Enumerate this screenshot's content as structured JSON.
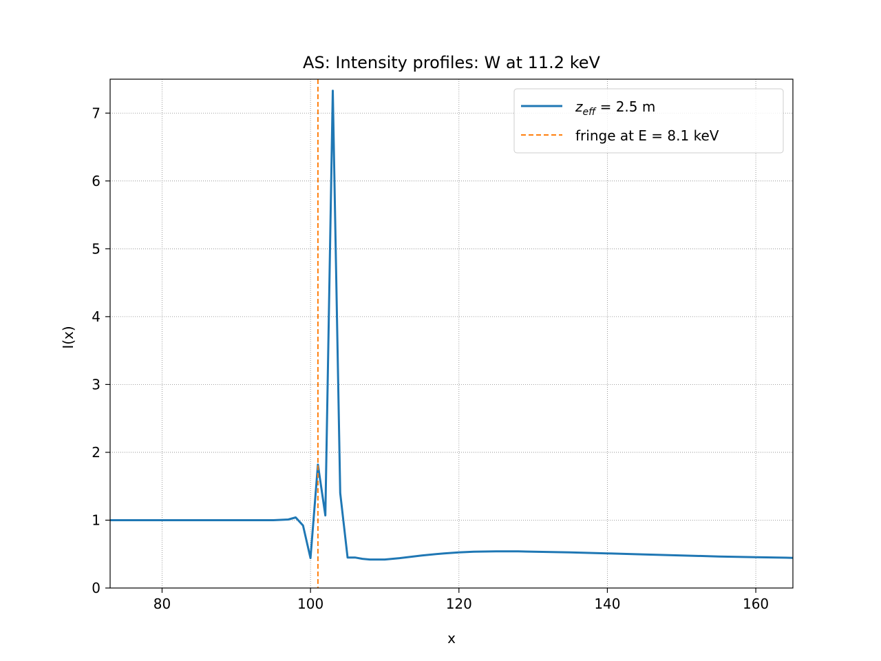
{
  "chart_data": {
    "type": "line",
    "title": "AS: Intensity profiles: W at 11.2 keV",
    "xlabel": "x",
    "ylabel": "I(x)",
    "xlim": [
      73,
      165
    ],
    "ylim": [
      0,
      7.5
    ],
    "xticks": [
      80,
      100,
      120,
      140,
      160
    ],
    "yticks": [
      0,
      1,
      2,
      3,
      4,
      5,
      6,
      7
    ],
    "grid": true,
    "legend_position": "top-right",
    "series": [
      {
        "name": "z_eff = 2.5 m",
        "legend_main": "z",
        "legend_sub": "eff",
        "legend_rest": " = 2.5 m",
        "color": "#1f77b4",
        "style": "solid",
        "x": [
          73,
          80,
          90,
          95,
          97,
          98,
          99,
          100,
          101,
          102,
          103,
          104,
          105,
          106,
          107,
          108,
          109,
          110,
          112,
          115,
          118,
          120,
          122,
          125,
          128,
          130,
          135,
          140,
          145,
          150,
          155,
          160,
          165
        ],
        "y": [
          1.0,
          1.0,
          1.0,
          1.0,
          1.01,
          1.04,
          0.92,
          0.44,
          1.82,
          1.07,
          7.33,
          1.4,
          0.45,
          0.45,
          0.43,
          0.42,
          0.42,
          0.42,
          0.44,
          0.48,
          0.51,
          0.525,
          0.535,
          0.54,
          0.54,
          0.535,
          0.525,
          0.51,
          0.495,
          0.48,
          0.465,
          0.455,
          0.445
        ]
      },
      {
        "name": "fringe at E = 8.1 keV",
        "color": "#ff7f0e",
        "style": "dashed",
        "vline_x": 101
      }
    ]
  }
}
